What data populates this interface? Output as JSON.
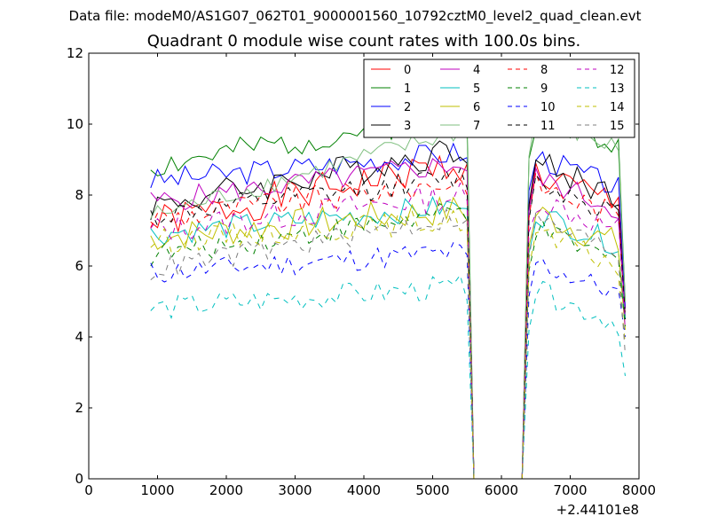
{
  "chart_data": {
    "type": "line",
    "suptitle": "Data file: modeM0/AS1G07_062T01_9000001560_10792cztM0_level2_quad_clean.evt",
    "title": "Quadrant 0 module wise count rates with 100.0s bins.",
    "xlabel": "",
    "ylabel": "",
    "offset_label": "+2.44101e8",
    "xlim": [
      0,
      8000
    ],
    "ylim": [
      0,
      12
    ],
    "xticks": [
      "0",
      "1000",
      "2000",
      "3000",
      "4000",
      "5000",
      "6000",
      "7000",
      "8000"
    ],
    "yticks": [
      "0",
      "2",
      "4",
      "6",
      "8",
      "10",
      "12"
    ],
    "legend_position": "top-right",
    "x_start": 900,
    "x_step": 100,
    "series": [
      {
        "name": "0",
        "color": "#ff0000",
        "dash": "solid",
        "base": 7.2,
        "pre": 8.9,
        "post": 8.6,
        "end": 4.8,
        "amp": 0.5,
        "seed": 1
      },
      {
        "name": "1",
        "color": "#008000",
        "dash": "solid",
        "base": 8.8,
        "pre": 10.3,
        "post": 10.2,
        "end": 5.0,
        "amp": 0.4,
        "seed": 2
      },
      {
        "name": "2",
        "color": "#0000ff",
        "dash": "solid",
        "base": 8.4,
        "pre": 9.2,
        "post": 9.1,
        "end": 4.8,
        "amp": 0.35,
        "seed": 3
      },
      {
        "name": "3",
        "color": "#000000",
        "dash": "solid",
        "base": 7.7,
        "pre": 9.3,
        "post": 8.9,
        "end": 4.5,
        "amp": 0.45,
        "seed": 4
      },
      {
        "name": "4",
        "color": "#bf00bf",
        "dash": "solid",
        "base": 7.8,
        "pre": 8.9,
        "post": 8.5,
        "end": 4.6,
        "amp": 0.35,
        "seed": 5
      },
      {
        "name": "5",
        "color": "#00bfbf",
        "dash": "solid",
        "base": 6.9,
        "pre": 7.7,
        "post": 7.5,
        "end": 4.5,
        "amp": 0.35,
        "seed": 6
      },
      {
        "name": "6",
        "color": "#bfbf00",
        "dash": "solid",
        "base": 6.8,
        "pre": 7.6,
        "post": 7.5,
        "end": 4.2,
        "amp": 0.45,
        "seed": 7
      },
      {
        "name": "7",
        "color": "#7fbf7f",
        "dash": "solid",
        "base": 7.4,
        "pre": 9.8,
        "post": 10.2,
        "end": 5.0,
        "amp": 0.3,
        "seed": 8
      },
      {
        "name": "8",
        "color": "#ff0000",
        "dash": "dashed",
        "base": 7.3,
        "pre": 8.4,
        "post": 8.3,
        "end": 4.6,
        "amp": 0.4,
        "seed": 9
      },
      {
        "name": "9",
        "color": "#008000",
        "dash": "dashed",
        "base": 6.3,
        "pre": 7.5,
        "post": 7.0,
        "end": 4.3,
        "amp": 0.35,
        "seed": 10
      },
      {
        "name": "10",
        "color": "#0000ff",
        "dash": "dashed",
        "base": 5.8,
        "pre": 6.4,
        "post": 6.1,
        "end": 4.0,
        "amp": 0.35,
        "seed": 11
      },
      {
        "name": "11",
        "color": "#000000",
        "dash": "dashed",
        "base": 7.4,
        "pre": 8.5,
        "post": 8.4,
        "end": 4.5,
        "amp": 0.35,
        "seed": 12
      },
      {
        "name": "12",
        "color": "#bf00bf",
        "dash": "dashed",
        "base": 7.0,
        "pre": 8.0,
        "post": 7.9,
        "end": 4.2,
        "amp": 0.4,
        "seed": 13
      },
      {
        "name": "13",
        "color": "#00bfbf",
        "dash": "dashed",
        "base": 4.8,
        "pre": 5.4,
        "post": 5.3,
        "end": 2.9,
        "amp": 0.35,
        "seed": 14
      },
      {
        "name": "14",
        "color": "#bfbf00",
        "dash": "dashed",
        "base": 6.7,
        "pre": 7.3,
        "post": 6.9,
        "end": 3.8,
        "amp": 0.35,
        "seed": 15
      },
      {
        "name": "15",
        "color": "#7f7f7f",
        "dash": "dashed",
        "base": 5.9,
        "pre": 7.4,
        "post": 7.3,
        "end": 3.5,
        "amp": 0.35,
        "seed": 16
      }
    ]
  }
}
